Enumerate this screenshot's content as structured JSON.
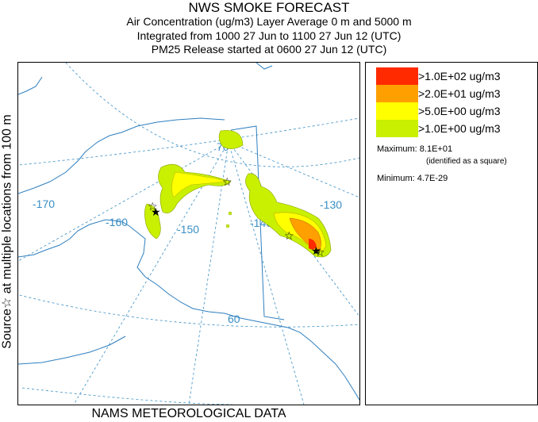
{
  "header": {
    "title": "NWS SMOKE FORECAST",
    "line2": "Air Concentration (ug/m3) Layer Average     0 m and  5000 m",
    "line3": "Integrated from 1000 27 Jun to 1100 27 Jun 12 (UTC)",
    "line4": "PM25 Release started at 0600 27 Jun 12 (UTC)"
  },
  "side_label": "Source☆ at multiple locations    from   100 m",
  "footer": "NAMS METEOROLOGICAL DATA",
  "map": {
    "longitude_labels": [
      "-170",
      "-160",
      "-150",
      "-140",
      "-130"
    ],
    "latitude_labels": [
      "70",
      "60"
    ],
    "colors": {
      "graticule": "#3a8fc4",
      "coastline": "#2f7fbf",
      "border": "#2f7fbf"
    }
  },
  "legend": {
    "items": [
      {
        "label": ">1.0E+02 ug/m3",
        "color": "#ff2a00"
      },
      {
        "label": ">2.0E+01 ug/m3",
        "color": "#ffa000"
      },
      {
        "label": ">5.0E+00 ug/m3",
        "color": "#ffff00"
      },
      {
        "label": ">1.0E+00 ug/m3",
        "color": "#c8f000"
      }
    ],
    "maximum_label": "Maximum: 8.1E+01",
    "maximum_note": "(identified as a square)",
    "minimum_label": "Minimum: 4.7E-29"
  }
}
